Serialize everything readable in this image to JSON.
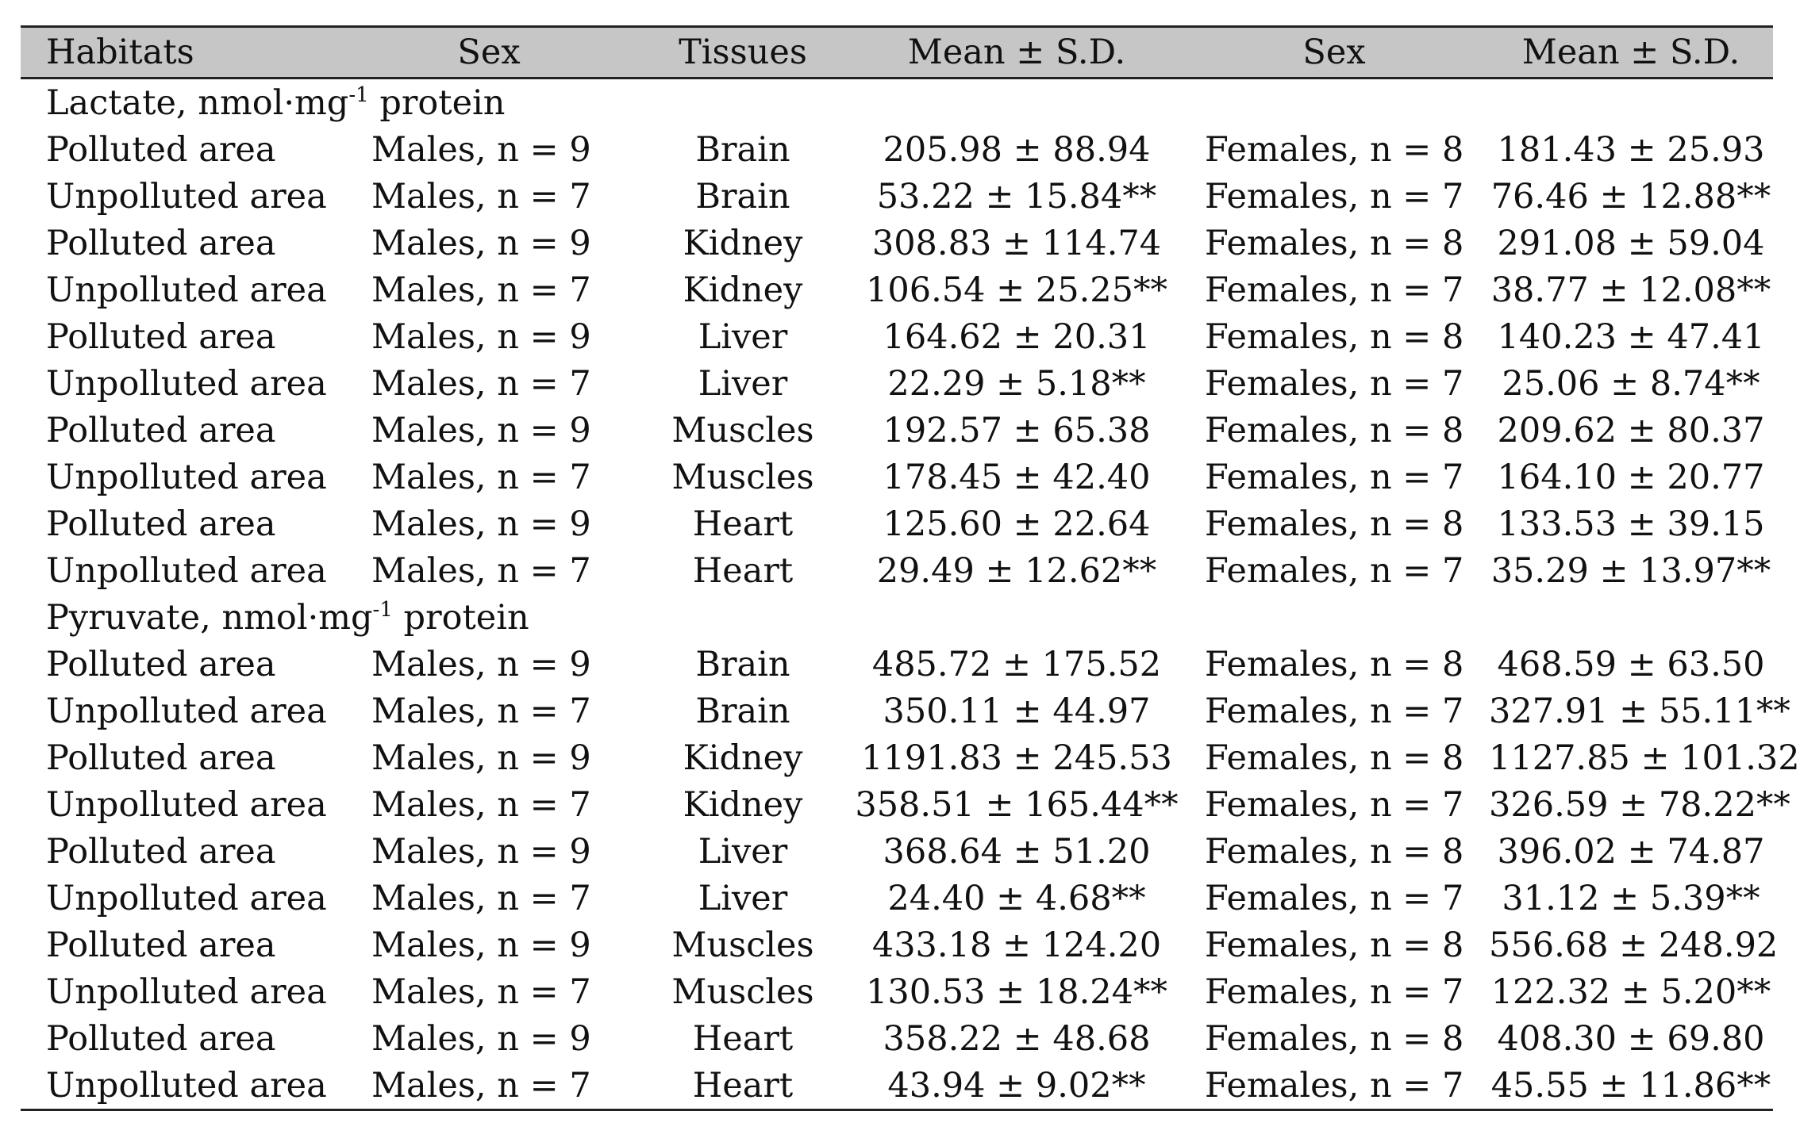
{
  "headers": {
    "habitats": "Habitats",
    "sex1": "Sex",
    "tissues": "Tissues",
    "mean1": "Mean ± S.D.",
    "sex2": "Sex",
    "mean2": "Mean ± S.D."
  },
  "sections": [
    {
      "title_main": "Lactate, nmol·mg",
      "title_sup": "-1",
      "title_tail": " protein",
      "rows": [
        {
          "habitat": "Polluted area",
          "male_sex": "Males, n = 9",
          "tissue": "Brain",
          "male_mean": "205.98 ± 88.94",
          "female_sex": "Females, n = 8",
          "female_mean": "181.43 ± 25.93"
        },
        {
          "habitat": "Unpolluted area",
          "male_sex": "Males, n = 7",
          "tissue": "Brain",
          "male_mean": "53.22 ± 15.84**",
          "female_sex": "Females, n = 7",
          "female_mean": "76.46 ± 12.88**"
        },
        {
          "habitat": "Polluted area",
          "male_sex": "Males, n = 9",
          "tissue": "Kidney",
          "male_mean": "308.83 ± 114.74",
          "female_sex": "Females, n = 8",
          "female_mean": "291.08 ± 59.04"
        },
        {
          "habitat": "Unpolluted area",
          "male_sex": "Males, n = 7",
          "tissue": "Kidney",
          "male_mean": "106.54 ± 25.25**",
          "female_sex": "Females, n = 7",
          "female_mean": "38.77 ± 12.08**"
        },
        {
          "habitat": "Polluted area",
          "male_sex": "Males, n = 9",
          "tissue": "Liver",
          "male_mean": "164.62 ± 20.31",
          "female_sex": "Females, n = 8",
          "female_mean": "140.23 ± 47.41"
        },
        {
          "habitat": "Unpolluted area",
          "male_sex": "Males, n = 7",
          "tissue": "Liver",
          "male_mean": "22.29 ± 5.18**",
          "female_sex": "Females, n = 7",
          "female_mean": "25.06 ± 8.74**"
        },
        {
          "habitat": "Polluted area",
          "male_sex": "Males, n = 9",
          "tissue": "Muscles",
          "male_mean": "192.57 ± 65.38",
          "female_sex": "Females, n = 8",
          "female_mean": "209.62 ± 80.37"
        },
        {
          "habitat": "Unpolluted area",
          "male_sex": "Males, n = 7",
          "tissue": "Muscles",
          "male_mean": "178.45 ± 42.40",
          "female_sex": "Females, n = 7",
          "female_mean": "164.10 ± 20.77"
        },
        {
          "habitat": "Polluted area",
          "male_sex": "Males, n = 9",
          "tissue": "Heart",
          "male_mean": "125.60 ± 22.64",
          "female_sex": "Females, n = 8",
          "female_mean": "133.53 ± 39.15"
        },
        {
          "habitat": "Unpolluted area",
          "male_sex": "Males, n = 7",
          "tissue": "Heart",
          "male_mean": "29.49 ± 12.62**",
          "female_sex": "Females, n = 7",
          "female_mean": "35.29 ± 13.97**"
        }
      ]
    },
    {
      "title_main": "Pyruvate, nmol·mg",
      "title_sup": "-1",
      "title_tail": " protein",
      "rows": [
        {
          "habitat": "Polluted area",
          "male_sex": "Males, n = 9",
          "tissue": "Brain",
          "male_mean": "485.72 ± 175.52",
          "female_sex": "Females, n = 8",
          "female_mean": "468.59 ± 63.50"
        },
        {
          "habitat": "Unpolluted area",
          "male_sex": "Males, n = 7",
          "tissue": "Brain",
          "male_mean": "350.11 ± 44.97",
          "female_sex": "Females, n = 7",
          "female_mean": "327.91 ± 55.11**"
        },
        {
          "habitat": "Polluted area",
          "male_sex": "Males, n = 9",
          "tissue": "Kidney",
          "male_mean": "1191.83 ± 245.53",
          "female_sex": "Females, n = 8",
          "female_mean": "1127.85 ± 101.32"
        },
        {
          "habitat": "Unpolluted area",
          "male_sex": "Males, n = 7",
          "tissue": "Kidney",
          "male_mean": "358.51 ± 165.44**",
          "female_sex": "Females, n = 7",
          "female_mean": "326.59 ± 78.22**"
        },
        {
          "habitat": "Polluted area",
          "male_sex": "Males, n = 9",
          "tissue": "Liver",
          "male_mean": "368.64 ± 51.20",
          "female_sex": "Females, n = 8",
          "female_mean": "396.02 ± 74.87"
        },
        {
          "habitat": "Unpolluted area",
          "male_sex": "Males, n = 7",
          "tissue": "Liver",
          "male_mean": "24.40 ± 4.68**",
          "female_sex": "Females, n = 7",
          "female_mean": "31.12 ± 5.39**"
        },
        {
          "habitat": "Polluted area",
          "male_sex": "Males, n = 9",
          "tissue": "Muscles",
          "male_mean": "433.18 ± 124.20",
          "female_sex": "Females, n = 8",
          "female_mean": "556.68 ± 248.92"
        },
        {
          "habitat": "Unpolluted area",
          "male_sex": "Males, n = 7",
          "tissue": "Muscles",
          "male_mean": "130.53 ± 18.24**",
          "female_sex": "Females, n = 7",
          "female_mean": "122.32 ± 5.20**"
        },
        {
          "habitat": "Polluted area",
          "male_sex": "Males, n = 9",
          "tissue": "Heart",
          "male_mean": "358.22 ± 48.68",
          "female_sex": "Females, n = 8",
          "female_mean": "408.30 ± 69.80"
        },
        {
          "habitat": "Unpolluted area",
          "male_sex": "Males, n = 7",
          "tissue": "Heart",
          "male_mean": "43.94 ± 9.02**",
          "female_sex": "Females, n = 7",
          "female_mean": "45.55 ± 11.86**"
        }
      ]
    }
  ]
}
